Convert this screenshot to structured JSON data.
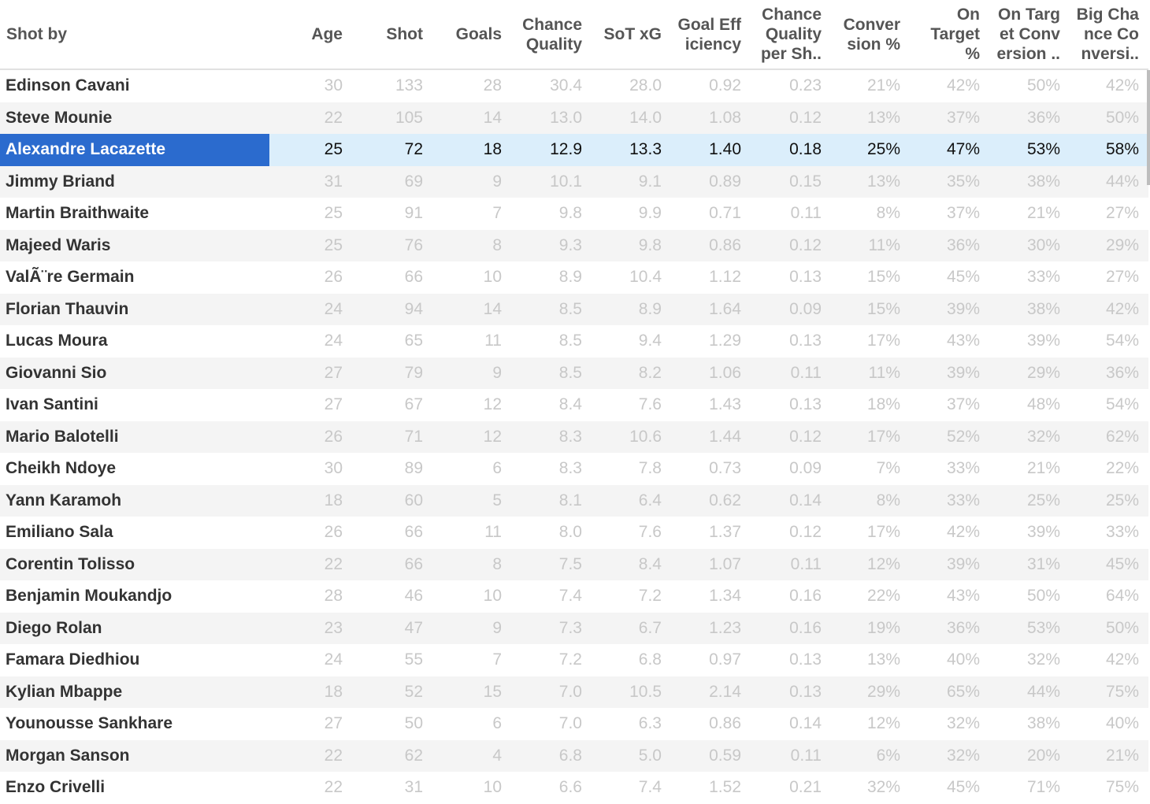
{
  "columns": [
    {
      "key": "name",
      "label": "Shot by"
    },
    {
      "key": "age",
      "label": "Age"
    },
    {
      "key": "shot",
      "label": "Shot"
    },
    {
      "key": "goals",
      "label": "Goals"
    },
    {
      "key": "cq",
      "label": "Chance\nQuality"
    },
    {
      "key": "sotxg",
      "label": "SoT xG"
    },
    {
      "key": "ge",
      "label": "Goal Eff\niciency"
    },
    {
      "key": "cqps",
      "label": "Chance\nQuality\nper Sh.."
    },
    {
      "key": "conv",
      "label": "Conver\nsion %"
    },
    {
      "key": "ot",
      "label": "On\nTarget\n%"
    },
    {
      "key": "otc",
      "label": "On Targ\net Conv\nersion .."
    },
    {
      "key": "bcc",
      "label": "Big Cha\nnce Co\nnversi.."
    }
  ],
  "selected_row": 2,
  "rows": [
    [
      "Edinson Cavani",
      "30",
      "133",
      "28",
      "30.4",
      "28.0",
      "0.92",
      "0.23",
      "21%",
      "42%",
      "50%",
      "42%"
    ],
    [
      "Steve Mounie",
      "22",
      "105",
      "14",
      "13.0",
      "14.0",
      "1.08",
      "0.12",
      "13%",
      "37%",
      "36%",
      "50%"
    ],
    [
      "Alexandre Lacazette",
      "25",
      "72",
      "18",
      "12.9",
      "13.3",
      "1.40",
      "0.18",
      "25%",
      "47%",
      "53%",
      "58%"
    ],
    [
      "Jimmy Briand",
      "31",
      "69",
      "9",
      "10.1",
      "9.1",
      "0.89",
      "0.15",
      "13%",
      "35%",
      "38%",
      "44%"
    ],
    [
      "Martin Braithwaite",
      "25",
      "91",
      "7",
      "9.8",
      "9.9",
      "0.71",
      "0.11",
      "8%",
      "37%",
      "21%",
      "27%"
    ],
    [
      "Majeed Waris",
      "25",
      "76",
      "8",
      "9.3",
      "9.8",
      "0.86",
      "0.12",
      "11%",
      "36%",
      "30%",
      "29%"
    ],
    [
      "ValÃ¨re Germain",
      "26",
      "66",
      "10",
      "8.9",
      "10.4",
      "1.12",
      "0.13",
      "15%",
      "45%",
      "33%",
      "27%"
    ],
    [
      "Florian Thauvin",
      "24",
      "94",
      "14",
      "8.5",
      "8.9",
      "1.64",
      "0.09",
      "15%",
      "39%",
      "38%",
      "42%"
    ],
    [
      "Lucas Moura",
      "24",
      "65",
      "11",
      "8.5",
      "9.4",
      "1.29",
      "0.13",
      "17%",
      "43%",
      "39%",
      "54%"
    ],
    [
      "Giovanni Sio",
      "27",
      "79",
      "9",
      "8.5",
      "8.2",
      "1.06",
      "0.11",
      "11%",
      "39%",
      "29%",
      "36%"
    ],
    [
      "Ivan Santini",
      "27",
      "67",
      "12",
      "8.4",
      "7.6",
      "1.43",
      "0.13",
      "18%",
      "37%",
      "48%",
      "54%"
    ],
    [
      "Mario Balotelli",
      "26",
      "71",
      "12",
      "8.3",
      "10.6",
      "1.44",
      "0.12",
      "17%",
      "52%",
      "32%",
      "62%"
    ],
    [
      "Cheikh Ndoye",
      "30",
      "89",
      "6",
      "8.3",
      "7.8",
      "0.73",
      "0.09",
      "7%",
      "33%",
      "21%",
      "22%"
    ],
    [
      "Yann Karamoh",
      "18",
      "60",
      "5",
      "8.1",
      "6.4",
      "0.62",
      "0.14",
      "8%",
      "33%",
      "25%",
      "25%"
    ],
    [
      "Emiliano Sala",
      "26",
      "66",
      "11",
      "8.0",
      "7.6",
      "1.37",
      "0.12",
      "17%",
      "42%",
      "39%",
      "33%"
    ],
    [
      "Corentin Tolisso",
      "22",
      "66",
      "8",
      "7.5",
      "8.4",
      "1.07",
      "0.11",
      "12%",
      "39%",
      "31%",
      "45%"
    ],
    [
      "Benjamin Moukandjo",
      "28",
      "46",
      "10",
      "7.4",
      "7.2",
      "1.34",
      "0.16",
      "22%",
      "43%",
      "50%",
      "64%"
    ],
    [
      "Diego Rolan",
      "23",
      "47",
      "9",
      "7.3",
      "6.7",
      "1.23",
      "0.16",
      "19%",
      "36%",
      "53%",
      "50%"
    ],
    [
      "Famara Diedhiou",
      "24",
      "55",
      "7",
      "7.2",
      "6.8",
      "0.97",
      "0.13",
      "13%",
      "40%",
      "32%",
      "42%"
    ],
    [
      "Kylian Mbappe",
      "18",
      "52",
      "15",
      "7.0",
      "10.5",
      "2.14",
      "0.13",
      "29%",
      "65%",
      "44%",
      "75%"
    ],
    [
      "Younousse Sankhare",
      "27",
      "50",
      "6",
      "7.0",
      "6.3",
      "0.86",
      "0.14",
      "12%",
      "32%",
      "38%",
      "40%"
    ],
    [
      "Morgan Sanson",
      "22",
      "62",
      "4",
      "6.8",
      "5.0",
      "0.59",
      "0.11",
      "6%",
      "32%",
      "20%",
      "21%"
    ],
    [
      "Enzo Crivelli",
      "22",
      "31",
      "10",
      "6.6",
      "7.4",
      "1.52",
      "0.21",
      "32%",
      "45%",
      "71%",
      "75%"
    ]
  ]
}
